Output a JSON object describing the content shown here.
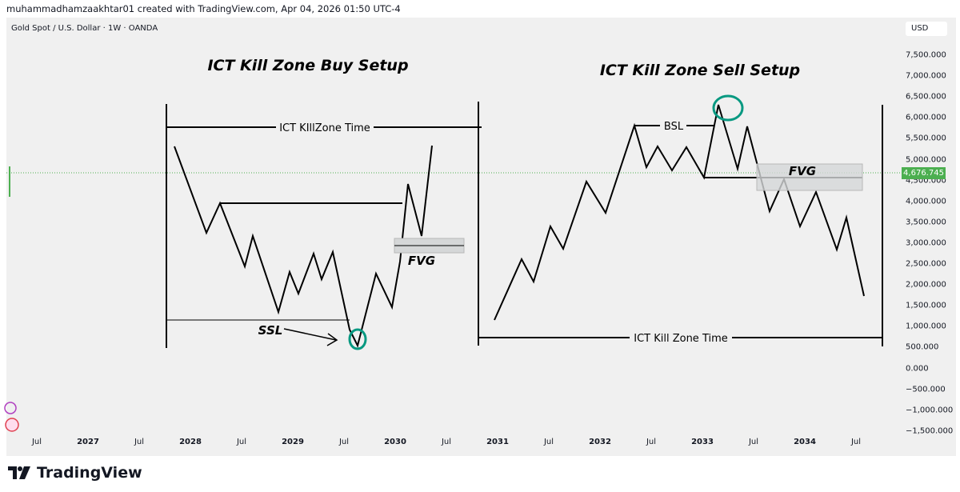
{
  "credit": "muhammadhamzaakhtar01 created with TradingView.com, Apr 04, 2026 01:50 UTC-4",
  "symbol": "Gold Spot / U.S. Dollar · 1W · OANDA",
  "currency": "USD",
  "price_axis": [
    "7,500.000",
    "7,000.000",
    "6,500.000",
    "6,000.000",
    "5,500.000",
    "5,000.000",
    "4,500.000",
    "4,000.000",
    "3,500.000",
    "3,000.000",
    "2,500.000",
    "2,000.000",
    "1,500.000",
    "1,000.000",
    "500.000",
    "0.000",
    "−500.000",
    "−1,000.000",
    "−1,500.000"
  ],
  "current_price": "4,676.745",
  "time_axis": [
    {
      "l": "Jul",
      "y": false
    },
    {
      "l": "2027",
      "y": true
    },
    {
      "l": "Jul",
      "y": false
    },
    {
      "l": "2028",
      "y": true
    },
    {
      "l": "Jul",
      "y": false
    },
    {
      "l": "2029",
      "y": true
    },
    {
      "l": "Jul",
      "y": false
    },
    {
      "l": "2030",
      "y": true
    },
    {
      "l": "Jul",
      "y": false
    },
    {
      "l": "2031",
      "y": true
    },
    {
      "l": "Jul",
      "y": false
    },
    {
      "l": "2032",
      "y": true
    },
    {
      "l": "Jul",
      "y": false
    },
    {
      "l": "2033",
      "y": true
    },
    {
      "l": "Jul",
      "y": false
    },
    {
      "l": "2034",
      "y": true
    },
    {
      "l": "Jul",
      "y": false
    }
  ],
  "annotations": {
    "buy_title": "ICT Kill Zone Buy Setup",
    "sell_title": "ICT Kill Zone Sell Setup",
    "buy_time": "ICT KIllZone Time",
    "sell_time": "ICT Kill Zone Time",
    "fvg_buy": "FVG",
    "fvg_sell": "FVG",
    "ssl": "SSL",
    "bsl": "BSL"
  },
  "colors": {
    "up": "#4caf50",
    "highlight_circle": "#089981",
    "drawing": "#000000"
  },
  "brand": "TradingView"
}
